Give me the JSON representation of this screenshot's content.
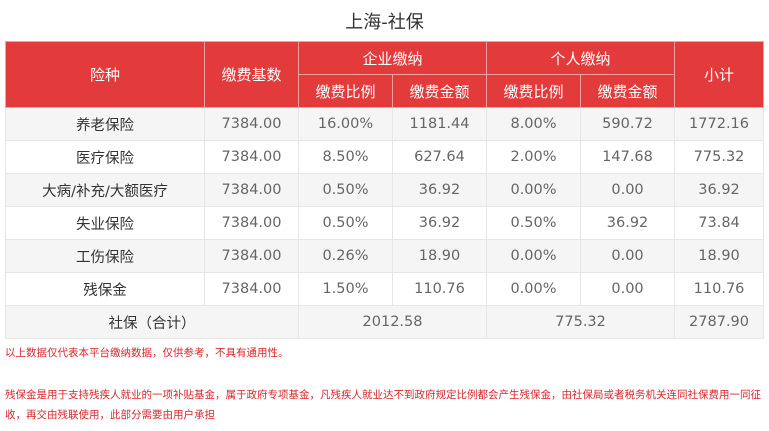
{
  "page": {
    "title": "上海-社保"
  },
  "table": {
    "headers": {
      "type": "险种",
      "base": "缴费基数",
      "company_group": "企业缴纳",
      "personal_group": "个人缴纳",
      "subtotal": "小计",
      "rate": "缴费比例",
      "amount": "缴费金额"
    },
    "rows": [
      {
        "name": "养老保险",
        "base": "7384.00",
        "c_rate": "16.00%",
        "c_amt": "1181.44",
        "p_rate": "8.00%",
        "p_amt": "590.72",
        "subtotal": "1772.16"
      },
      {
        "name": "医疗保险",
        "base": "7384.00",
        "c_rate": "8.50%",
        "c_amt": "627.64",
        "p_rate": "2.00%",
        "p_amt": "147.68",
        "subtotal": "775.32"
      },
      {
        "name": "大病/补充/大额医疗",
        "base": "7384.00",
        "c_rate": "0.50%",
        "c_amt": "36.92",
        "p_rate": "0.00%",
        "p_amt": "0.00",
        "subtotal": "36.92"
      },
      {
        "name": "失业保险",
        "base": "7384.00",
        "c_rate": "0.50%",
        "c_amt": "36.92",
        "p_rate": "0.50%",
        "p_amt": "36.92",
        "subtotal": "73.84"
      },
      {
        "name": "工伤保险",
        "base": "7384.00",
        "c_rate": "0.26%",
        "c_amt": "18.90",
        "p_rate": "0.00%",
        "p_amt": "0.00",
        "subtotal": "18.90"
      },
      {
        "name": "残保金",
        "base": "7384.00",
        "c_rate": "1.50%",
        "c_amt": "110.76",
        "p_rate": "0.00%",
        "p_amt": "0.00",
        "subtotal": "110.76"
      }
    ],
    "total": {
      "label": "社保（合计）",
      "company": "2012.58",
      "personal": "775.32",
      "subtotal": "2787.90"
    }
  },
  "notes": {
    "disclaimer": "以上数据仅代表本平台缴纳数据，仅供参考，不具有通用性。",
    "disability_fund": "残保金是用于支持残疾人就业的一项补贴基金，属于政府专项基金，凡残疾人就业达不到政府规定比例都会产生残保金，由社保局或者税务机关连同社保费用一同征收，再交由残联使用，此部分需要由用户承担"
  },
  "colors": {
    "header_bg": "#e33a3c",
    "note_text": "#d9262c"
  }
}
